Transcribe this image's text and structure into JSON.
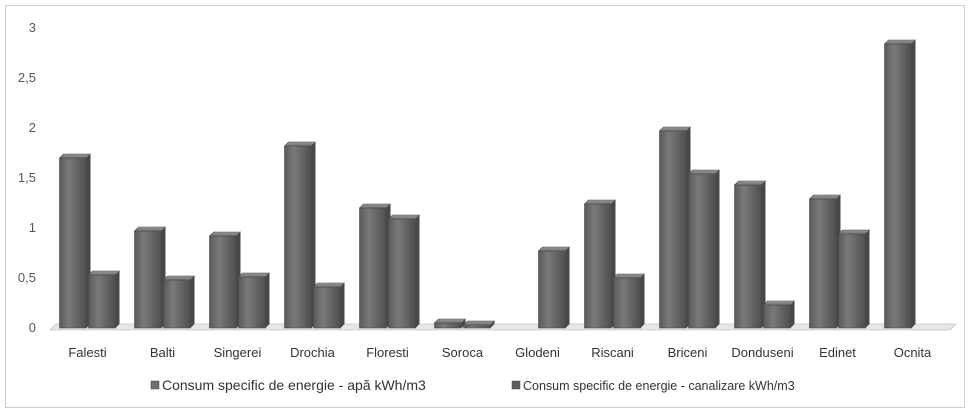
{
  "chart_data": {
    "type": "bar",
    "title": "",
    "xlabel": "",
    "ylabel": "",
    "ylim": [
      0,
      3
    ],
    "y_ticks": [
      "0",
      "0,5",
      "1",
      "1,5",
      "2",
      "2,5",
      "3"
    ],
    "grid": false,
    "legend_position": "bottom",
    "categories": [
      "Falesti",
      "Balti",
      "Singerei",
      "Drochia",
      "Floresti",
      "Soroca",
      "Glodeni",
      "Riscani",
      "Briceni",
      "Donduseni",
      "Edinet",
      "Ocnita"
    ],
    "series": [
      {
        "name": "Consum specific de energie - apă kWh/m3",
        "color": "#6f6f6f",
        "values": [
          1.7,
          0.97,
          0.92,
          1.82,
          1.2,
          0.05,
          0,
          1.24,
          1.97,
          1.43,
          1.29,
          2.84
        ]
      },
      {
        "name": "Consum specific de energie - canalizare kWh/m3",
        "color": "#5e5e5e",
        "values": [
          0.53,
          0.48,
          0.51,
          0.41,
          1.09,
          0.03,
          0.77,
          0.5,
          1.54,
          0.23,
          0.94,
          0
        ]
      }
    ]
  }
}
